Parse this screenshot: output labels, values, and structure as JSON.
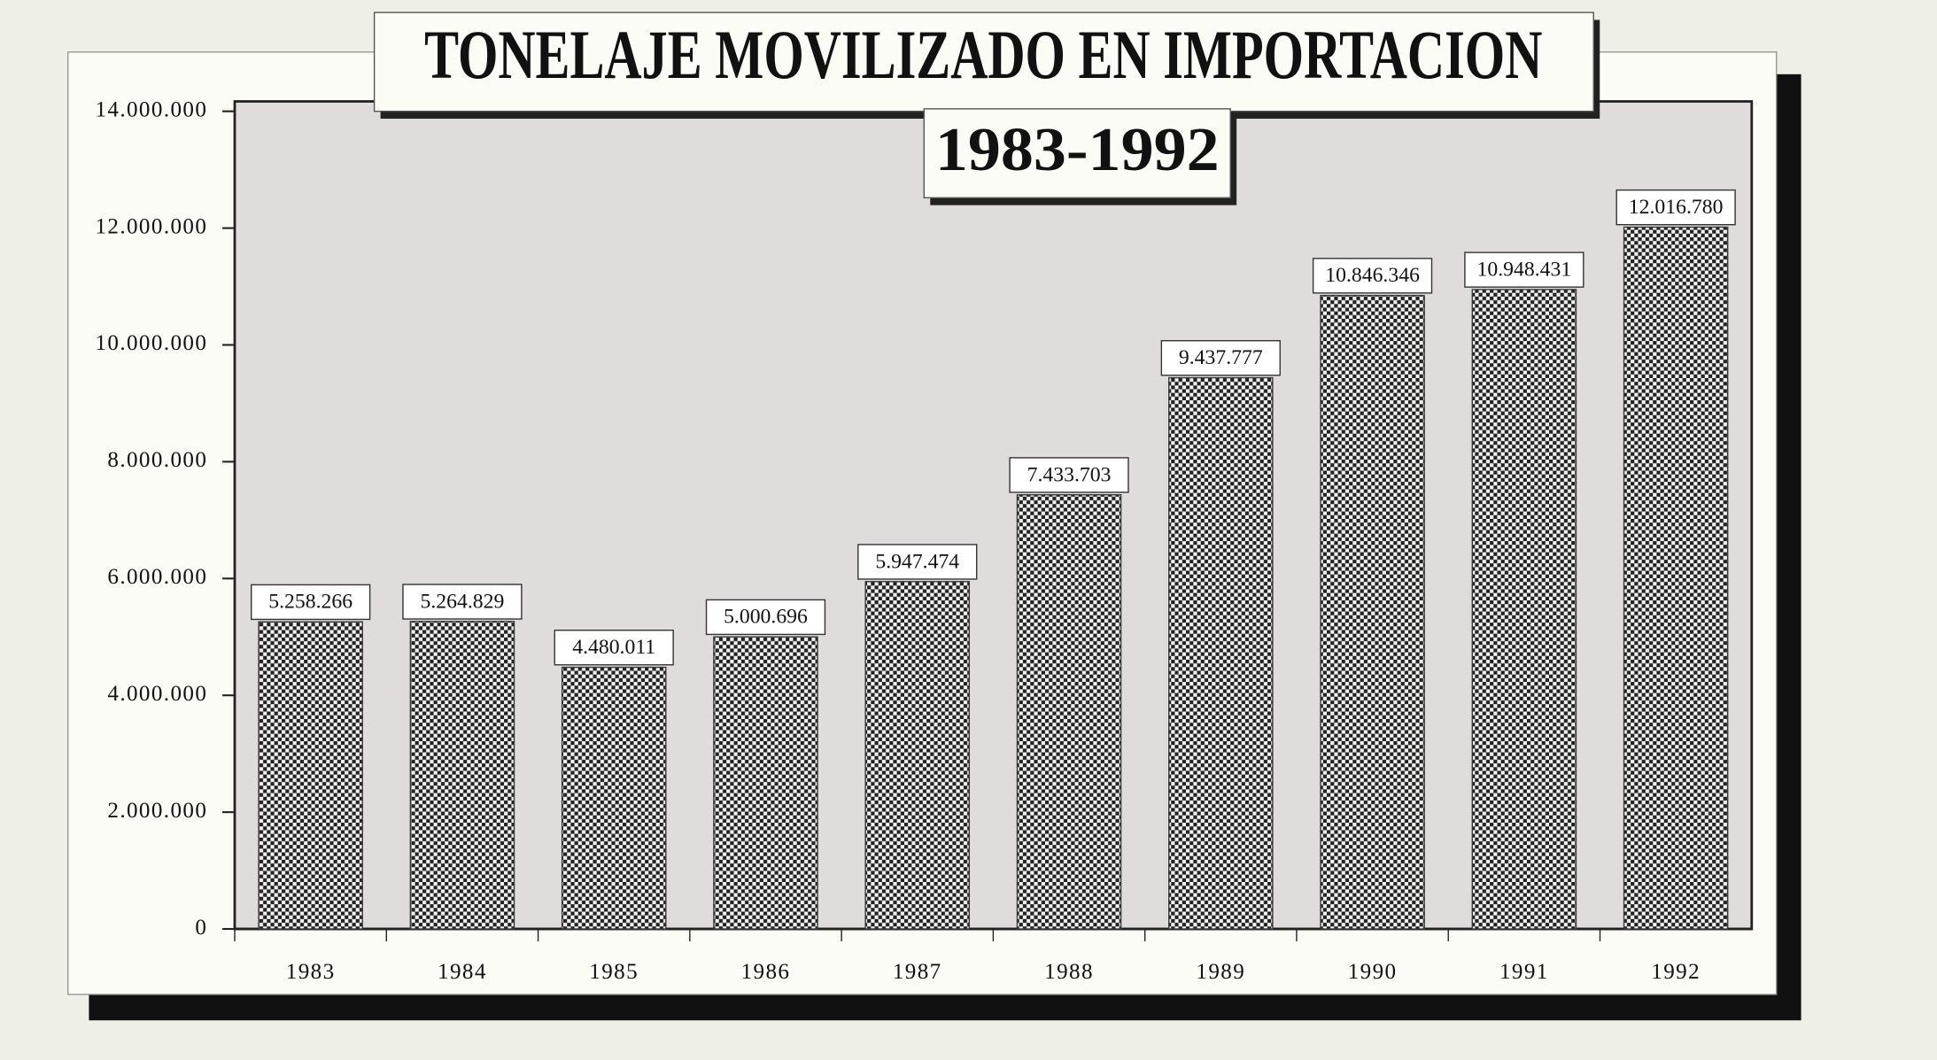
{
  "chart_data": {
    "type": "bar",
    "title": "TONELAJE MOVILIZADO EN IMPORTACION",
    "subtitle": "1983-1992",
    "categories": [
      "1983",
      "1984",
      "1985",
      "1986",
      "1987",
      "1988",
      "1989",
      "1990",
      "1991",
      "1992"
    ],
    "values": [
      5258266,
      5264829,
      4480011,
      5000696,
      5947474,
      7433703,
      9437777,
      10846346,
      10948431,
      12016780
    ],
    "value_labels": [
      "5.258.266",
      "5.264.829",
      "4.480.011",
      "5.000.696",
      "5.947.474",
      "7.433.703",
      "9.437.777",
      "10.846.346",
      "10.948.431",
      "12.016.780"
    ],
    "color": "#3a3a3a",
    "ylim": [
      0,
      14000000
    ],
    "yticks": [
      0,
      {
        "value": 2000000,
        "label": "2.000.000"
      },
      {
        "value": 4000000,
        "label": "4.000.000"
      },
      {
        "value": 6000000,
        "label": "6.000.000"
      },
      {
        "value": 8000000,
        "label": "8.000.000"
      },
      {
        "value": 10000000,
        "label": "10.000.000"
      },
      {
        "value": 12000000,
        "label": "12.000.000"
      },
      {
        "value": 14000000,
        "label": "14.000.000"
      }
    ]
  }
}
